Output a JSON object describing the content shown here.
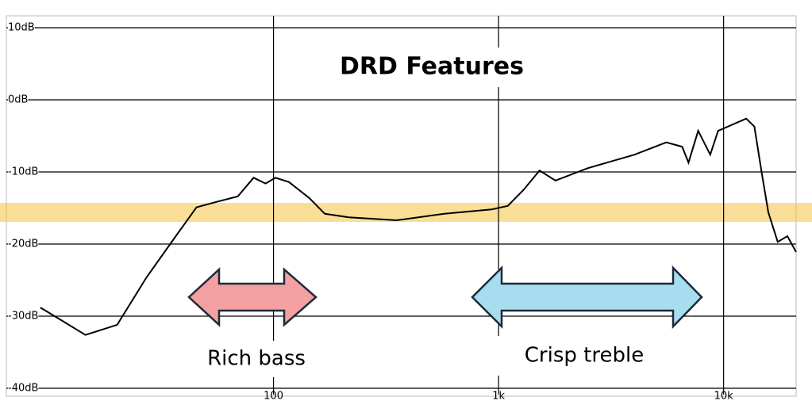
{
  "chart_data": {
    "type": "line",
    "title": "DRD Features",
    "annotations": [
      "Rich bass",
      "Crisp treble"
    ],
    "x": [
      9.2,
      11.6,
      14.6,
      20.2,
      27.3,
      36.8,
      45.5,
      56.6,
      69.4,
      81.6,
      92.2,
      102,
      117,
      144,
      169,
      216,
      352,
      574,
      934,
      1100,
      1290,
      1520,
      1790,
      2480,
      4020,
      5560,
      6540,
      6980,
      7710,
      8720,
      9450,
      12600,
      13700,
      14800,
      15800,
      17400,
      19200,
      21000
    ],
    "values": [
      -28.8,
      -30.7,
      -32.6,
      -31.2,
      -24.6,
      -18.9,
      -14.9,
      -14.1,
      -13.4,
      -10.8,
      -11.6,
      -10.8,
      -11.4,
      -13.6,
      -15.8,
      -16.3,
      -16.7,
      -15.8,
      -15.2,
      -14.7,
      -12.5,
      -9.8,
      -11.2,
      -9.5,
      -7.6,
      -5.9,
      -6.5,
      -8.7,
      -4.3,
      -7.6,
      -4.3,
      -2.6,
      -3.7,
      -10.3,
      -15.6,
      -19.7,
      -18.9,
      -21.1
    ],
    "color": "#000000",
    "xlim": [
      6.5,
      21000
    ],
    "xscale": "log",
    "xticks": [
      100,
      {
        "value": 1000,
        "label": "1k"
      },
      {
        "value": 10000,
        "label": "10k"
      }
    ],
    "ylim": [
      -40,
      10
    ],
    "yticks": [
      {
        "value": 10,
        "label": "10dB"
      },
      {
        "value": 0,
        "label": "0dB"
      },
      {
        "value": -10,
        "label": "-10dB"
      },
      {
        "value": -20,
        "label": "-20dB"
      },
      {
        "value": -30,
        "label": "-30dB"
      },
      {
        "value": -40,
        "label": "-40dB"
      }
    ],
    "grid": true
  }
}
